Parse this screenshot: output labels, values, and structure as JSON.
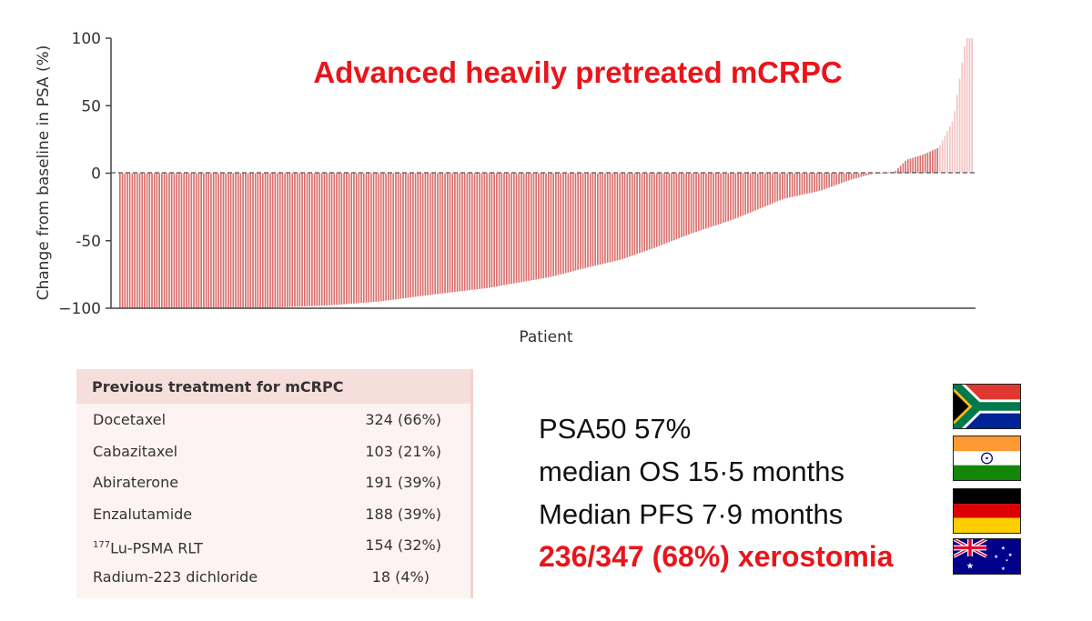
{
  "chart_data": {
    "type": "bar",
    "title": "Advanced heavily pretreated mCRPC",
    "xlabel": "Patient",
    "ylabel": "Change from baseline in PSA (%)",
    "ylim": [
      -100,
      100
    ],
    "yticks": [
      100,
      50,
      0,
      -50,
      -100
    ],
    "ytick_labels": [
      "100",
      "50",
      "0",
      "-50",
      "−100"
    ],
    "n_patients": 347,
    "grid": false,
    "bar_color": "#d9706d",
    "bar_color_capped": "#f3c4c2",
    "zero_line_style": "dashed",
    "curve_points": [
      {
        "rank": 0,
        "value": -100
      },
      {
        "rank": 56,
        "value": -100
      },
      {
        "rank": 85,
        "value": -98
      },
      {
        "rank": 106,
        "value": -95
      },
      {
        "rank": 127,
        "value": -90
      },
      {
        "rank": 150,
        "value": -85
      },
      {
        "rank": 175,
        "value": -77
      },
      {
        "rank": 190,
        "value": -70
      },
      {
        "rank": 204,
        "value": -64
      },
      {
        "rank": 218,
        "value": -55
      },
      {
        "rank": 232,
        "value": -45
      },
      {
        "rank": 250,
        "value": -34
      },
      {
        "rank": 270,
        "value": -19
      },
      {
        "rank": 285,
        "value": -13
      },
      {
        "rank": 297,
        "value": -5
      },
      {
        "rank": 307,
        "value": 0
      },
      {
        "rank": 315,
        "value": 1
      },
      {
        "rank": 320,
        "value": 10
      },
      {
        "rank": 327,
        "value": 14
      },
      {
        "rank": 333,
        "value": 19
      },
      {
        "rank": 339,
        "value": 40
      },
      {
        "rank": 344,
        "value": 100
      },
      {
        "rank": 347,
        "value": 100
      }
    ],
    "capped_from_rank": 333
  },
  "treatment_table": {
    "header": "Previous treatment for mCRPC",
    "rows": [
      {
        "name": "Docetaxel",
        "value": "324 (66%)"
      },
      {
        "name": "Cabazitaxel",
        "value": "103 (21%)"
      },
      {
        "name": "Abiraterone",
        "value": "191 (39%)"
      },
      {
        "name": "Enzalutamide",
        "value": "188 (39%)"
      },
      {
        "name_sup": "177",
        "name": "Lu-PSMA RLT",
        "value": "154 (32%)"
      },
      {
        "name": "Radium-223 dichloride",
        "value": "18 (4%)"
      }
    ]
  },
  "stats": {
    "psa50": "PSA50 57%",
    "os": "median OS 15·5 months",
    "pfs": "Median PFS 7·9 months",
    "xerostomia": "236/347 (68%) xerostomia"
  },
  "flags": [
    "south-africa-flag",
    "india-flag",
    "germany-flag",
    "australia-flag"
  ],
  "colors": {
    "accent_red": "#e8151b"
  }
}
